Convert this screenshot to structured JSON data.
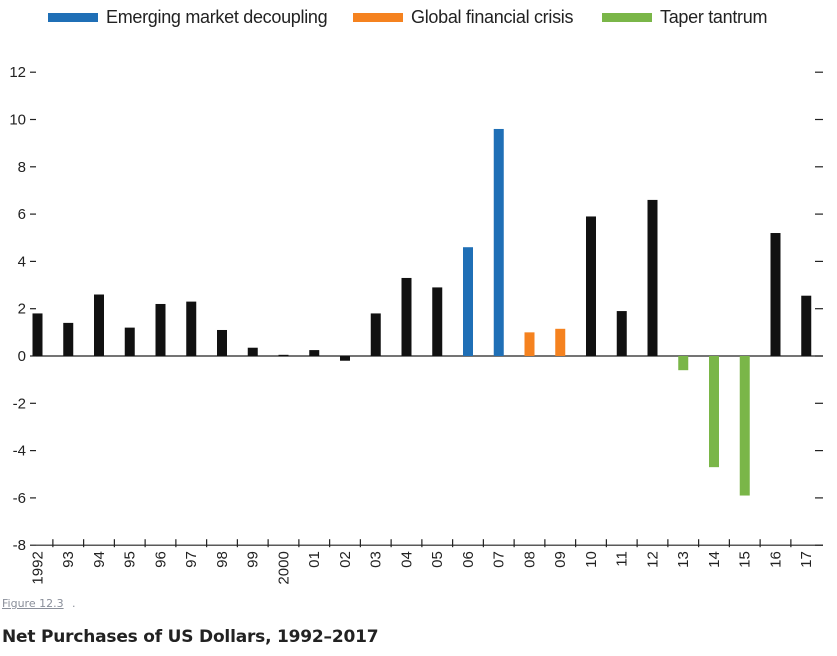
{
  "figure_link": "Figure 12.3",
  "caption": "Net Purchases of US Dollars, 1992–2017",
  "chart_data": {
    "type": "bar",
    "title": "",
    "xlabel": "",
    "ylabel": "",
    "ylim": [
      -8,
      12
    ],
    "yticks": [
      12,
      10,
      8,
      6,
      4,
      2,
      0,
      -2,
      -4,
      -6,
      -8
    ],
    "ytick_labels": [
      "12",
      "10",
      "8",
      "6",
      "4",
      "2",
      "0",
      "-2",
      "-4",
      "-6",
      "-8"
    ],
    "categories": [
      "1992",
      "93",
      "94",
      "95",
      "96",
      "97",
      "98",
      "99",
      "2000",
      "01",
      "02",
      "03",
      "04",
      "05",
      "06",
      "07",
      "08",
      "09",
      "10",
      "11",
      "12",
      "13",
      "14",
      "15",
      "16",
      "17"
    ],
    "values": [
      1.8,
      1.4,
      2.6,
      1.2,
      2.2,
      2.3,
      1.1,
      0.35,
      0.05,
      0.25,
      -0.2,
      1.8,
      3.3,
      2.9,
      4.6,
      9.6,
      1.0,
      1.15,
      5.9,
      1.9,
      6.6,
      -0.6,
      -4.7,
      -5.9,
      5.2,
      2.55
    ],
    "groups": [
      "other",
      "other",
      "other",
      "other",
      "other",
      "other",
      "other",
      "other",
      "other",
      "other",
      "other",
      "other",
      "other",
      "other",
      "emerging",
      "emerging",
      "gfc",
      "gfc",
      "other",
      "other",
      "other",
      "taper",
      "taper",
      "taper",
      "other",
      "other"
    ],
    "legend": [
      {
        "key": "emerging",
        "name": "Emerging market decoupling",
        "color": "#1f6fb6"
      },
      {
        "key": "gfc",
        "name": "Global financial crisis",
        "color": "#f5821f"
      },
      {
        "key": "taper",
        "name": "Taper tantrum",
        "color": "#7ab648"
      }
    ],
    "default_color": "#111111",
    "legend_position": "top",
    "grid": false
  }
}
